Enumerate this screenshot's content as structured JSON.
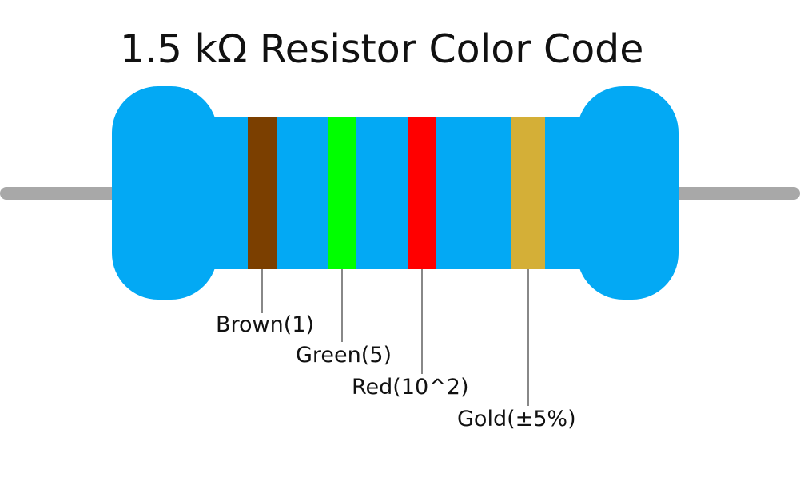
{
  "title": "1.5 kΩ Resistor Color Code",
  "colors": {
    "body": "#03A9F4",
    "lead": "#A8A8A8",
    "callout_line": "#111111"
  },
  "bands": [
    {
      "name": "Brown",
      "color": "#7B3F00",
      "label": "Brown(1)"
    },
    {
      "name": "Green",
      "color": "#00FF00",
      "label": "Green(5)"
    },
    {
      "name": "Red",
      "color": "#FF0000",
      "label": "Red(10^2)"
    },
    {
      "name": "Gold",
      "color": "#D4AF37",
      "label": "Gold(±5%)"
    }
  ]
}
